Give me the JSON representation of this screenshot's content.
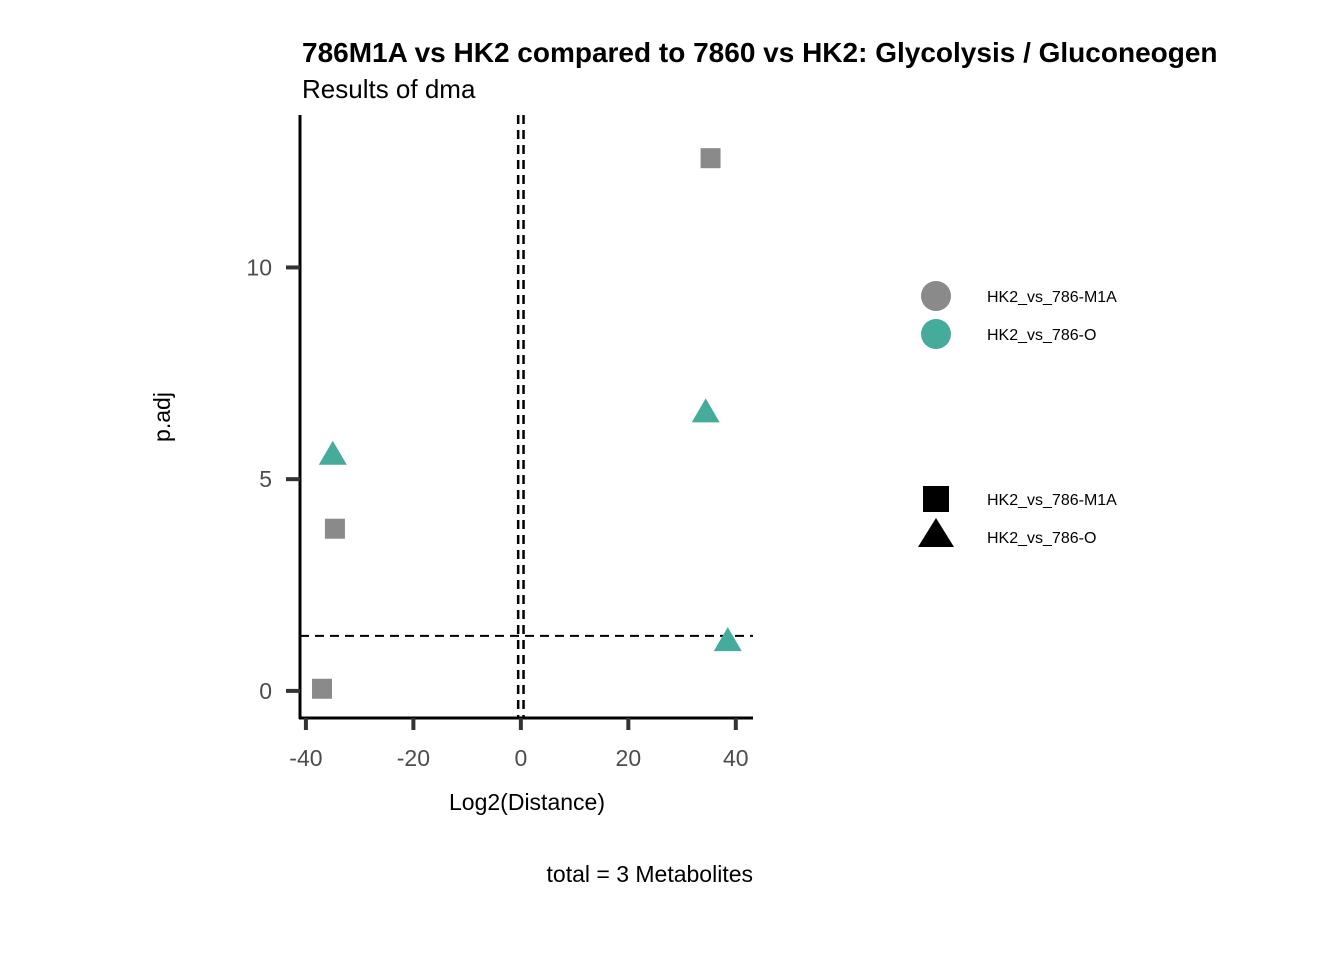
{
  "chart_data": {
    "type": "scatter",
    "title": "786M1A vs HK2 compared to 7860 vs HK2: Glycolysis / Gluconeogen",
    "subtitle": "Results of dma",
    "xlabel": "Log2(Distance)",
    "ylabel": "p.adj",
    "caption": "total = 3 Metabolites",
    "xlim": [
      -41.1,
      43.2
    ],
    "ylim": [
      -0.64,
      13.6
    ],
    "xticks": [
      -40,
      -20,
      0,
      20,
      40
    ],
    "xtick_labels": [
      "-40",
      "-20",
      "0",
      "20",
      "40"
    ],
    "yticks": [
      0,
      5,
      10
    ],
    "ytick_labels": [
      "0",
      "5",
      "10"
    ],
    "grid": false,
    "legend_placement": "right",
    "reference_lines": {
      "vertical": [
        -0.5,
        0.5
      ],
      "horizontal": [
        1.3
      ]
    },
    "color_legend": [
      {
        "label": "HK2_vs_786-M1A",
        "color": "#8A8A8A"
      },
      {
        "label": "HK2_vs_786-O",
        "color": "#45AB9A"
      }
    ],
    "shape_legend": [
      {
        "label": "HK2_vs_786-M1A",
        "shape": "square"
      },
      {
        "label": "HK2_vs_786-O",
        "shape": "triangle"
      }
    ],
    "series": [
      {
        "name": "HK2_vs_786-M1A",
        "color": "#8A8A8A",
        "shape": "square",
        "points": [
          {
            "x": 35.3,
            "y": 12.58
          },
          {
            "x": -34.6,
            "y": 3.83
          },
          {
            "x": -37.0,
            "y": 0.05
          }
        ]
      },
      {
        "name": "HK2_vs_786-O",
        "color": "#45AB9A",
        "shape": "triangle",
        "points": [
          {
            "x": 34.4,
            "y": 6.6
          },
          {
            "x": -35.0,
            "y": 5.6
          },
          {
            "x": 38.5,
            "y": 1.2
          }
        ]
      }
    ]
  }
}
